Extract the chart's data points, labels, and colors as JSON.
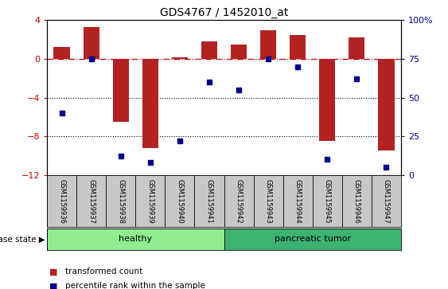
{
  "title": "GDS4767 / 1452010_at",
  "samples": [
    "GSM1159936",
    "GSM1159937",
    "GSM1159938",
    "GSM1159939",
    "GSM1159940",
    "GSM1159941",
    "GSM1159942",
    "GSM1159943",
    "GSM1159944",
    "GSM1159945",
    "GSM1159946",
    "GSM1159947"
  ],
  "transformed_count": [
    1.2,
    3.3,
    -6.5,
    -9.2,
    0.2,
    1.8,
    1.5,
    3.0,
    2.5,
    -8.5,
    2.2,
    -9.5
  ],
  "percentile": [
    40,
    75,
    12,
    8,
    22,
    60,
    55,
    75,
    70,
    10,
    62,
    5
  ],
  "bar_color": "#B22222",
  "dot_color": "#00008B",
  "ylim_left": [
    -12,
    4
  ],
  "ylim_right": [
    0,
    100
  ],
  "yticks_left": [
    -12,
    -8,
    -4,
    0,
    4
  ],
  "yticks_right": [
    0,
    25,
    50,
    75,
    100
  ],
  "hline_color": "#CC0000",
  "dotted_lines": [
    -4,
    -8
  ],
  "dotted_color": "black",
  "healthy_color": "#90EE90",
  "pancreatic_color": "#3CB371",
  "healthy_label": "healthy",
  "pancreatic_label": "pancreatic tumor",
  "disease_state_label": "disease state",
  "legend_bar_label": "transformed count",
  "legend_dot_label": "percentile rank within the sample",
  "bg_color": "white",
  "plot_bg_color": "white",
  "tick_label_color_left": "#CC0000",
  "tick_label_color_right": "#00008B",
  "xlabel_area_color": "#C8C8C8",
  "n_samples": 12,
  "n_healthy": 6,
  "n_pancreatic": 6
}
